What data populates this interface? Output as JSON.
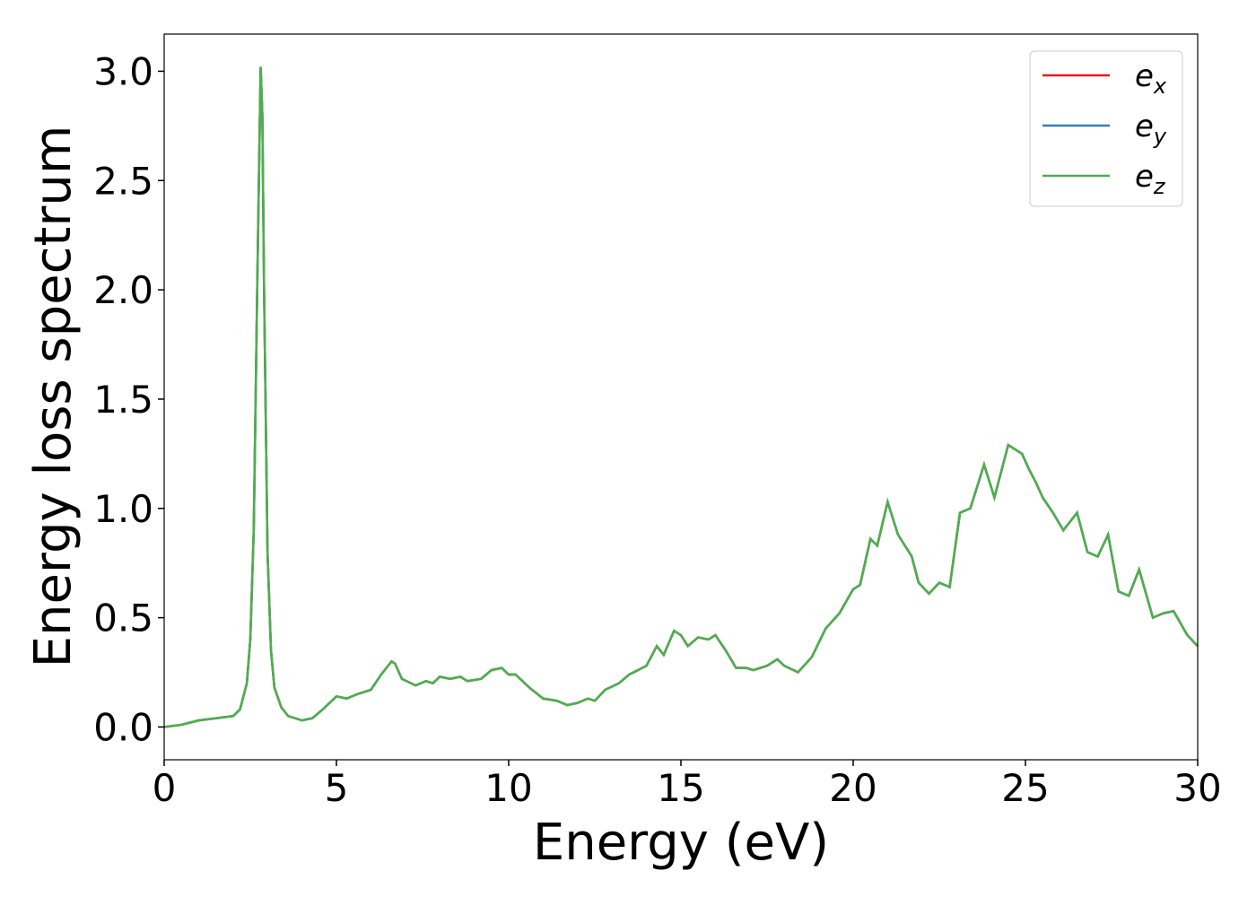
{
  "chart_data": {
    "type": "line",
    "xlabel": "Energy (eV)",
    "ylabel": "Energy loss spectrum",
    "x": [
      0,
      0.5,
      1.0,
      1.5,
      2.0,
      2.2,
      2.4,
      2.5,
      2.6,
      2.7,
      2.8,
      2.85,
      2.9,
      3.0,
      3.1,
      3.2,
      3.4,
      3.6,
      4.0,
      4.3,
      4.6,
      5.0,
      5.3,
      5.6,
      6.0,
      6.3,
      6.6,
      6.7,
      6.9,
      7.3,
      7.6,
      7.8,
      8.0,
      8.3,
      8.6,
      8.8,
      9.2,
      9.5,
      9.8,
      10.0,
      10.2,
      10.6,
      11.0,
      11.4,
      11.7,
      12.0,
      12.3,
      12.5,
      12.8,
      13.2,
      13.5,
      14.0,
      14.3,
      14.5,
      14.8,
      15.0,
      15.2,
      15.5,
      15.8,
      16.0,
      16.3,
      16.6,
      16.9,
      17.1,
      17.5,
      17.8,
      18.0,
      18.4,
      18.8,
      19.2,
      19.6,
      20.0,
      20.2,
      20.5,
      20.7,
      21.0,
      21.3,
      21.7,
      21.9,
      22.2,
      22.5,
      22.8,
      23.1,
      23.4,
      23.8,
      24.1,
      24.5,
      24.9,
      25.1,
      25.3,
      25.5,
      25.8,
      26.1,
      26.5,
      26.8,
      27.1,
      27.4,
      27.7,
      28.0,
      28.3,
      28.7,
      29.0,
      29.3,
      29.7,
      30.0
    ],
    "series": [
      {
        "name": "e_x",
        "color": "#e41a1c",
        "values": [
          0,
          0.01,
          0.03,
          0.04,
          0.05,
          0.08,
          0.2,
          0.4,
          0.9,
          2.0,
          3.02,
          2.8,
          2.0,
          0.8,
          0.35,
          0.18,
          0.09,
          0.05,
          0.03,
          0.04,
          0.08,
          0.14,
          0.13,
          0.15,
          0.17,
          0.24,
          0.3,
          0.29,
          0.22,
          0.19,
          0.21,
          0.2,
          0.23,
          0.22,
          0.23,
          0.21,
          0.22,
          0.26,
          0.27,
          0.24,
          0.24,
          0.18,
          0.13,
          0.12,
          0.1,
          0.11,
          0.13,
          0.12,
          0.17,
          0.2,
          0.24,
          0.28,
          0.37,
          0.33,
          0.44,
          0.42,
          0.37,
          0.41,
          0.4,
          0.42,
          0.35,
          0.27,
          0.27,
          0.26,
          0.28,
          0.31,
          0.28,
          0.25,
          0.32,
          0.45,
          0.52,
          0.63,
          0.65,
          0.86,
          0.83,
          1.03,
          0.88,
          0.78,
          0.66,
          0.61,
          0.66,
          0.64,
          0.98,
          1.0,
          1.2,
          1.05,
          1.29,
          1.25,
          1.18,
          1.12,
          1.05,
          0.98,
          0.9,
          0.98,
          0.8,
          0.78,
          0.88,
          0.62,
          0.6,
          0.72,
          0.5,
          0.52,
          0.53,
          0.42,
          0.37
        ]
      },
      {
        "name": "e_y",
        "color": "#377eb8",
        "values": [
          0,
          0.01,
          0.03,
          0.04,
          0.05,
          0.08,
          0.2,
          0.4,
          0.9,
          2.0,
          3.02,
          2.8,
          2.0,
          0.8,
          0.35,
          0.18,
          0.09,
          0.05,
          0.03,
          0.04,
          0.08,
          0.14,
          0.13,
          0.15,
          0.17,
          0.24,
          0.3,
          0.29,
          0.22,
          0.19,
          0.21,
          0.2,
          0.23,
          0.22,
          0.23,
          0.21,
          0.22,
          0.26,
          0.27,
          0.24,
          0.24,
          0.18,
          0.13,
          0.12,
          0.1,
          0.11,
          0.13,
          0.12,
          0.17,
          0.2,
          0.24,
          0.28,
          0.37,
          0.33,
          0.44,
          0.42,
          0.37,
          0.41,
          0.4,
          0.42,
          0.35,
          0.27,
          0.27,
          0.26,
          0.28,
          0.31,
          0.28,
          0.25,
          0.32,
          0.45,
          0.52,
          0.63,
          0.65,
          0.86,
          0.83,
          1.03,
          0.88,
          0.78,
          0.66,
          0.61,
          0.66,
          0.64,
          0.98,
          1.0,
          1.2,
          1.05,
          1.29,
          1.25,
          1.18,
          1.12,
          1.05,
          0.98,
          0.9,
          0.98,
          0.8,
          0.78,
          0.88,
          0.62,
          0.6,
          0.72,
          0.5,
          0.52,
          0.53,
          0.42,
          0.37
        ]
      },
      {
        "name": "e_z",
        "color": "#4daf4a",
        "values": [
          0,
          0.01,
          0.03,
          0.04,
          0.05,
          0.08,
          0.2,
          0.4,
          0.9,
          2.0,
          3.02,
          2.8,
          2.0,
          0.8,
          0.35,
          0.18,
          0.09,
          0.05,
          0.03,
          0.04,
          0.08,
          0.14,
          0.13,
          0.15,
          0.17,
          0.24,
          0.3,
          0.29,
          0.22,
          0.19,
          0.21,
          0.2,
          0.23,
          0.22,
          0.23,
          0.21,
          0.22,
          0.26,
          0.27,
          0.24,
          0.24,
          0.18,
          0.13,
          0.12,
          0.1,
          0.11,
          0.13,
          0.12,
          0.17,
          0.2,
          0.24,
          0.28,
          0.37,
          0.33,
          0.44,
          0.42,
          0.37,
          0.41,
          0.4,
          0.42,
          0.35,
          0.27,
          0.27,
          0.26,
          0.28,
          0.31,
          0.28,
          0.25,
          0.32,
          0.45,
          0.52,
          0.63,
          0.65,
          0.86,
          0.83,
          1.03,
          0.88,
          0.78,
          0.66,
          0.61,
          0.66,
          0.64,
          0.98,
          1.0,
          1.2,
          1.05,
          1.29,
          1.25,
          1.18,
          1.12,
          1.05,
          0.98,
          0.9,
          0.98,
          0.8,
          0.78,
          0.88,
          0.62,
          0.6,
          0.72,
          0.5,
          0.52,
          0.53,
          0.42,
          0.37
        ]
      }
    ],
    "xlim": [
      0,
      30
    ],
    "xticks": [
      0,
      5,
      10,
      15,
      20,
      25,
      30
    ],
    "ylim": [
      -0.15,
      3.17
    ],
    "yticks": [
      {
        "value": 0,
        "label": "0.0"
      },
      0.5,
      {
        "value": 1,
        "label": "1.0"
      },
      1.5,
      {
        "value": 2,
        "label": "2.0"
      },
      2.5,
      {
        "value": 3,
        "label": "3.0"
      }
    ],
    "legend": "upper right",
    "grid": false
  }
}
